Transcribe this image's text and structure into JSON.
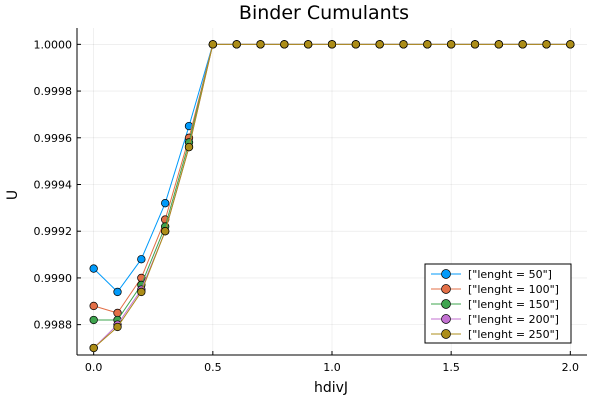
{
  "chart_data": {
    "type": "line",
    "title": "Binder Cumulants",
    "xlabel": "hdivJ",
    "ylabel": "U",
    "xlim": [
      -0.07,
      2.07
    ],
    "ylim": [
      0.99867,
      1.00007
    ],
    "xticks": [
      0.0,
      0.5,
      1.0,
      1.5,
      2.0
    ],
    "xtick_labels": [
      "0.0",
      "0.5",
      "1.0",
      "1.5",
      "2.0"
    ],
    "yticks": [
      0.9988,
      0.999,
      0.9992,
      0.9994,
      0.9996,
      0.9998,
      1.0
    ],
    "ytick_labels": [
      "0.9988",
      "0.9990",
      "0.9992",
      "0.9994",
      "0.9996",
      "0.9998",
      "1.0000"
    ],
    "grid": true,
    "legend_position": "bottom-right",
    "x": [
      0.0,
      0.1,
      0.2,
      0.3,
      0.4,
      0.5,
      0.6,
      0.7,
      0.8,
      0.9,
      1.0,
      1.1,
      1.2,
      1.3,
      1.4,
      1.5,
      1.6,
      1.7,
      1.8,
      1.9,
      2.0
    ],
    "series": [
      {
        "name": "[\"lenght = 50\"]",
        "color": "#009AFA",
        "values": [
          0.99904,
          0.99894,
          0.99908,
          0.99932,
          0.99965,
          1.0,
          1.0,
          1.0,
          1.0,
          1.0,
          1.0,
          1.0,
          1.0,
          1.0,
          1.0,
          1.0,
          1.0,
          1.0,
          1.0,
          1.0,
          1.0
        ]
      },
      {
        "name": "[\"lenght = 100\"]",
        "color": "#E36F47",
        "values": [
          0.99888,
          0.99885,
          0.999,
          0.99925,
          0.9996,
          1.0,
          1.0,
          1.0,
          1.0,
          1.0,
          1.0,
          1.0,
          1.0,
          1.0,
          1.0,
          1.0,
          1.0,
          1.0,
          1.0,
          1.0,
          1.0
        ]
      },
      {
        "name": "[\"lenght = 150\"]",
        "color": "#3EA44E",
        "values": [
          0.99882,
          0.99882,
          0.99897,
          0.99922,
          0.99958,
          1.0,
          1.0,
          1.0,
          1.0,
          1.0,
          1.0,
          1.0,
          1.0,
          1.0,
          1.0,
          1.0,
          1.0,
          1.0,
          1.0,
          1.0,
          1.0
        ]
      },
      {
        "name": "[\"lenght = 200\"]",
        "color": "#C371D2",
        "values": [
          0.9987,
          0.9988,
          0.99895,
          0.9992,
          0.99956,
          1.0,
          1.0,
          1.0,
          1.0,
          1.0,
          1.0,
          1.0,
          1.0,
          1.0,
          1.0,
          1.0,
          1.0,
          1.0,
          1.0,
          1.0,
          1.0
        ]
      },
      {
        "name": "[\"lenght = 250\"]",
        "color": "#AC8D18",
        "values": [
          0.9987,
          0.99879,
          0.99894,
          0.9992,
          0.99956,
          1.0,
          1.0,
          1.0,
          1.0,
          1.0,
          1.0,
          1.0,
          1.0,
          1.0,
          1.0,
          1.0,
          1.0,
          1.0,
          1.0,
          1.0,
          1.0
        ]
      }
    ]
  }
}
